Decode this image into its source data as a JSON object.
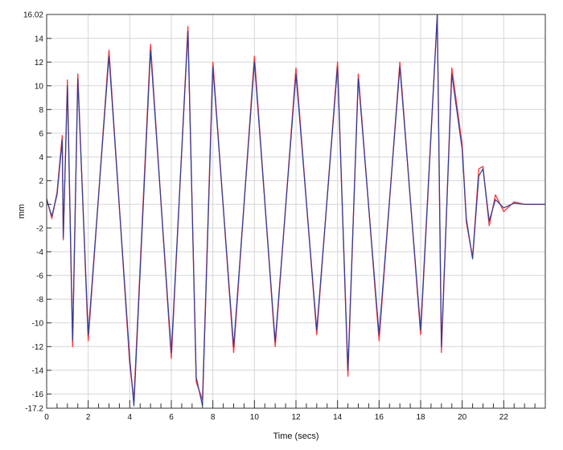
{
  "chart_data": {
    "type": "line",
    "title": "",
    "xlabel": "Time (secs)",
    "ylabel": "mm",
    "xlim": [
      0,
      24
    ],
    "ylim": [
      -17.2,
      16.02
    ],
    "x_ticks": [
      0,
      2,
      4,
      6,
      8,
      10,
      12,
      14,
      16,
      18,
      20,
      22
    ],
    "y_ticks": [
      16.02,
      14,
      12,
      10,
      8,
      6,
      4,
      2,
      0,
      -2,
      -4,
      -6,
      -8,
      -10,
      -12,
      -14,
      -16,
      -17.2
    ],
    "grid": true,
    "legend": "none",
    "colors": {
      "series_1": "#ff3b3b",
      "series_2": "#2a3f9c",
      "grid": "#d6d6d6"
    },
    "series": [
      {
        "x": [
          0,
          0.25,
          0.5,
          0.75,
          0.8,
          1.0,
          1.25,
          1.5,
          2.0,
          3.0,
          4.0,
          4.2,
          5.0,
          6.0,
          6.8,
          7.2,
          7.5,
          8.0,
          9.0,
          10.0,
          11.0,
          12.0,
          13.0,
          14.0,
          14.5,
          15.0,
          16.0,
          17.0,
          18.0,
          18.8,
          19.0,
          19.5,
          20.0,
          20.2,
          20.5,
          20.8,
          21.0,
          21.3,
          21.6,
          22.0,
          22.5,
          23.0,
          24.0
        ],
        "y": [
          0.5,
          -1.2,
          1.0,
          5.8,
          -3.0,
          10.5,
          -12.0,
          11.0,
          -11.5,
          13.0,
          -13.5,
          -16.5,
          13.5,
          -13.0,
          15.0,
          -15.0,
          -16.5,
          12.0,
          -12.5,
          12.5,
          -12.0,
          11.5,
          -11.0,
          12.0,
          -14.5,
          11.0,
          -11.5,
          12.0,
          -11.0,
          16.0,
          -12.5,
          11.5,
          5.0,
          -1.5,
          -4.5,
          3.0,
          3.2,
          -1.8,
          0.8,
          -0.6,
          0.2,
          0.0,
          0.0
        ]
      },
      {
        "x": [
          0,
          0.25,
          0.5,
          0.75,
          0.8,
          1.0,
          1.25,
          1.5,
          2.0,
          3.0,
          4.0,
          4.2,
          5.0,
          6.0,
          6.8,
          7.2,
          7.5,
          8.0,
          9.0,
          10.0,
          11.0,
          12.0,
          13.0,
          14.0,
          14.5,
          15.0,
          16.0,
          17.0,
          18.0,
          18.8,
          19.0,
          19.5,
          20.0,
          20.2,
          20.5,
          20.8,
          21.0,
          21.3,
          21.6,
          22.0,
          22.5,
          23.0,
          24.0
        ],
        "y": [
          0.4,
          -1.0,
          0.8,
          5.4,
          -2.8,
          10.0,
          -11.5,
          10.6,
          -11.0,
          12.5,
          -13.0,
          -17.0,
          13.0,
          -12.5,
          14.6,
          -14.6,
          -17.0,
          11.6,
          -12.0,
          12.0,
          -11.6,
          11.0,
          -10.6,
          11.6,
          -14.0,
          10.6,
          -11.0,
          11.6,
          -10.6,
          16.0,
          -12.0,
          11.0,
          4.6,
          -1.2,
          -4.6,
          2.4,
          3.0,
          -1.4,
          0.4,
          -0.3,
          0.1,
          0.0,
          0.0
        ]
      }
    ]
  }
}
